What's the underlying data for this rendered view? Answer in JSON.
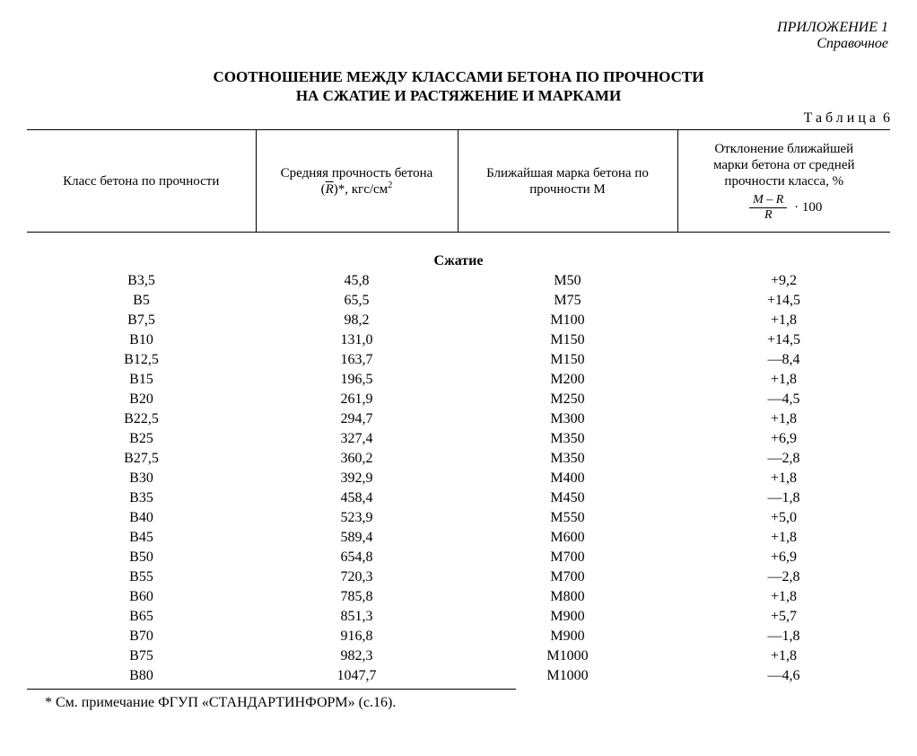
{
  "header": {
    "appendix": "ПРИЛОЖЕНИЕ 1",
    "reference": "Справочное"
  },
  "title": {
    "line1": "СООТНОШЕНИЕ МЕЖДУ КЛАССАМИ БЕТОНА ПО ПРОЧНОСТИ",
    "line2": "НА СЖАТИЕ И РАСТЯЖЕНИЕ И МАРКАМИ"
  },
  "table_label_word": "Таблица",
  "table_number": "6",
  "columns": {
    "c1": "Класс бетона по прочности",
    "c2_pre": "Средняя прочность бетона",
    "c2_sym_open": "(",
    "c2_sym_R": "R",
    "c2_sym_close": ")*",
    "c2_units": ", кгс/см",
    "c2_exp": "2",
    "c3_l1": "Ближайшая марка бетона по",
    "c3_l2": "прочности М",
    "c4_l1": "Отклонение ближайшей",
    "c4_l2": "марки бетона от средней",
    "c4_l3": "прочности класса, %",
    "c4_num": "M – R",
    "c4_den": "R",
    "c4_mult": "· 100"
  },
  "section": "Сжатие",
  "rows": [
    {
      "cls": "В3,5",
      "str": "45,8",
      "mark": "М50",
      "dev": "+9,2"
    },
    {
      "cls": "В5",
      "str": "65,5",
      "mark": "М75",
      "dev": "+14,5"
    },
    {
      "cls": "В7,5",
      "str": "98,2",
      "mark": "М100",
      "dev": "+1,8"
    },
    {
      "cls": "В10",
      "str": "131,0",
      "mark": "М150",
      "dev": "+14,5"
    },
    {
      "cls": "В12,5",
      "str": "163,7",
      "mark": "М150",
      "dev": "—8,4"
    },
    {
      "cls": "В15",
      "str": "196,5",
      "mark": "М200",
      "dev": "+1,8"
    },
    {
      "cls": "В20",
      "str": "261,9",
      "mark": "М250",
      "dev": "—4,5"
    },
    {
      "cls": "В22,5",
      "str": "294,7",
      "mark": "М300",
      "dev": "+1,8"
    },
    {
      "cls": "В25",
      "str": "327,4",
      "mark": "М350",
      "dev": "+6,9"
    },
    {
      "cls": "В27,5",
      "str": "360,2",
      "mark": "М350",
      "dev": "—2,8"
    },
    {
      "cls": "В30",
      "str": "392,9",
      "mark": "М400",
      "dev": "+1,8"
    },
    {
      "cls": "В35",
      "str": "458,4",
      "mark": "М450",
      "dev": "—1,8"
    },
    {
      "cls": "В40",
      "str": "523,9",
      "mark": "М550",
      "dev": "+5,0"
    },
    {
      "cls": "В45",
      "str": "589,4",
      "mark": "М600",
      "dev": "+1,8"
    },
    {
      "cls": "В50",
      "str": "654,8",
      "mark": "М700",
      "dev": "+6,9"
    },
    {
      "cls": "В55",
      "str": "720,3",
      "mark": "М700",
      "dev": "—2,8"
    },
    {
      "cls": "В60",
      "str": "785,8",
      "mark": "М800",
      "dev": "+1,8"
    },
    {
      "cls": "В65",
      "str": "851,3",
      "mark": "М900",
      "dev": "+5,7"
    },
    {
      "cls": "В70",
      "str": "916,8",
      "mark": "М900",
      "dev": "—1,8"
    },
    {
      "cls": "В75",
      "str": "982,3",
      "mark": "М1000",
      "dev": "+1,8"
    },
    {
      "cls": "В80",
      "str": "1047,7",
      "mark": "М1000",
      "dev": "—4,6"
    }
  ],
  "footnote": "* См. примечание ФГУП «СТАНДАРТИНФОРМ» (с.16).",
  "style": {
    "text_color": "#000000",
    "background_color": "#ffffff",
    "rule_color": "#000000",
    "base_font_size_pt": 12,
    "header_font_size_pt": 11,
    "title_font_size_pt": 13,
    "font_family": "Times New Roman"
  }
}
